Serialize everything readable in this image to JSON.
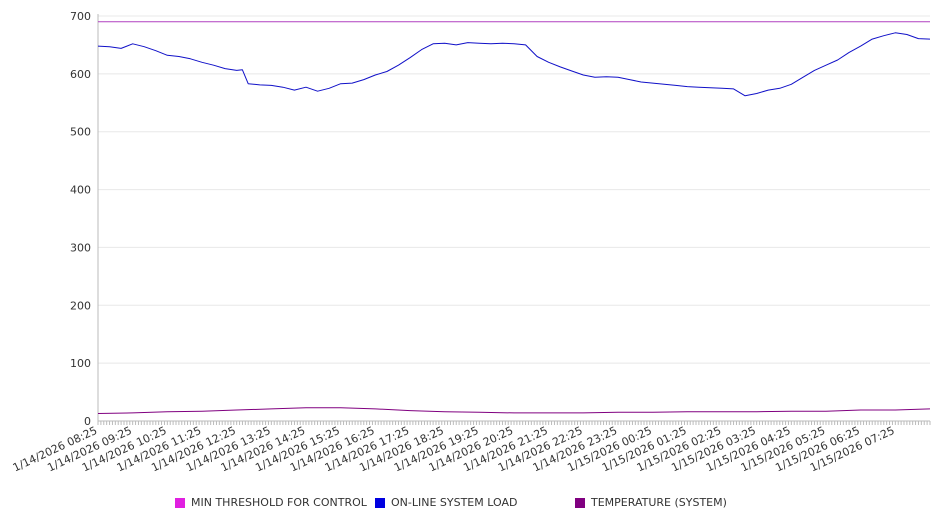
{
  "chart_data": {
    "type": "line",
    "y_ticks": [
      0,
      100,
      200,
      300,
      400,
      500,
      600,
      700
    ],
    "ylim": [
      0,
      700
    ],
    "x_tick_labels": [
      "1/14/2026 08:25",
      "1/14/2026 09:25",
      "1/14/2026 10:25",
      "1/14/2026 11:25",
      "1/14/2026 12:25",
      "1/14/2026 13:25",
      "1/14/2026 14:25",
      "1/14/2026 15:25",
      "1/14/2026 16:25",
      "1/14/2026 17:25",
      "1/14/2026 18:25",
      "1/14/2026 19:25",
      "1/14/2026 20:25",
      "1/14/2026 21:25",
      "1/14/2026 22:25",
      "1/14/2026 23:25",
      "1/15/2026 00:25",
      "1/15/2026 01:25",
      "1/15/2026 02:25",
      "1/15/2026 03:25",
      "1/15/2026 04:25",
      "1/15/2026 05:25",
      "1/15/2026 06:25",
      "1/15/2026 07:25"
    ],
    "x_range": [
      "1/14/2026 08:25",
      "1/15/2026 08:25"
    ],
    "grid": true,
    "legend_position": "bottom",
    "series": [
      {
        "name": "MIN THRESHOLD FOR CONTROL",
        "color": "#e020e0",
        "line_color": "#b040c0",
        "points": [
          [
            "1/14/2026 08:25",
            690
          ],
          [
            "1/15/2026 08:25",
            690
          ]
        ]
      },
      {
        "name": "ON-LINE SYSTEM LOAD",
        "color": "#0000e0",
        "line_color": "#1010c8",
        "points": [
          [
            "1/14/2026 08:25",
            648
          ],
          [
            "1/14/2026 08:45",
            647
          ],
          [
            "1/14/2026 09:05",
            644
          ],
          [
            "1/14/2026 09:25",
            652
          ],
          [
            "1/14/2026 09:45",
            647
          ],
          [
            "1/14/2026 10:05",
            640
          ],
          [
            "1/14/2026 10:25",
            632
          ],
          [
            "1/14/2026 10:45",
            630
          ],
          [
            "1/14/2026 11:05",
            626
          ],
          [
            "1/14/2026 11:25",
            620
          ],
          [
            "1/14/2026 11:45",
            615
          ],
          [
            "1/14/2026 12:05",
            609
          ],
          [
            "1/14/2026 12:25",
            606
          ],
          [
            "1/14/2026 12:35",
            607
          ],
          [
            "1/14/2026 12:45",
            583
          ],
          [
            "1/14/2026 13:05",
            581
          ],
          [
            "1/14/2026 13:25",
            580
          ],
          [
            "1/14/2026 13:45",
            577
          ],
          [
            "1/14/2026 14:05",
            572
          ],
          [
            "1/14/2026 14:25",
            577
          ],
          [
            "1/14/2026 14:45",
            570
          ],
          [
            "1/14/2026 15:05",
            575
          ],
          [
            "1/14/2026 15:25",
            583
          ],
          [
            "1/14/2026 15:45",
            584
          ],
          [
            "1/14/2026 16:05",
            590
          ],
          [
            "1/14/2026 16:25",
            598
          ],
          [
            "1/14/2026 16:45",
            604
          ],
          [
            "1/14/2026 17:05",
            615
          ],
          [
            "1/14/2026 17:25",
            628
          ],
          [
            "1/14/2026 17:45",
            642
          ],
          [
            "1/14/2026 18:05",
            652
          ],
          [
            "1/14/2026 18:25",
            653
          ],
          [
            "1/14/2026 18:45",
            650
          ],
          [
            "1/14/2026 19:05",
            654
          ],
          [
            "1/14/2026 19:25",
            653
          ],
          [
            "1/14/2026 19:45",
            652
          ],
          [
            "1/14/2026 20:05",
            653
          ],
          [
            "1/14/2026 20:25",
            652
          ],
          [
            "1/14/2026 20:45",
            650
          ],
          [
            "1/14/2026 21:05",
            630
          ],
          [
            "1/14/2026 21:25",
            620
          ],
          [
            "1/14/2026 21:45",
            612
          ],
          [
            "1/14/2026 22:05",
            605
          ],
          [
            "1/14/2026 22:25",
            598
          ],
          [
            "1/14/2026 22:45",
            594
          ],
          [
            "1/14/2026 23:05",
            595
          ],
          [
            "1/14/2026 23:25",
            594
          ],
          [
            "1/14/2026 23:45",
            590
          ],
          [
            "1/15/2026 00:05",
            586
          ],
          [
            "1/15/2026 00:25",
            584
          ],
          [
            "1/15/2026 00:45",
            582
          ],
          [
            "1/15/2026 01:05",
            580
          ],
          [
            "1/15/2026 01:25",
            578
          ],
          [
            "1/15/2026 01:45",
            577
          ],
          [
            "1/15/2026 02:05",
            576
          ],
          [
            "1/15/2026 02:25",
            575
          ],
          [
            "1/15/2026 02:45",
            574
          ],
          [
            "1/15/2026 03:05",
            562
          ],
          [
            "1/15/2026 03:25",
            566
          ],
          [
            "1/15/2026 03:45",
            572
          ],
          [
            "1/15/2026 04:05",
            575
          ],
          [
            "1/15/2026 04:25",
            582
          ],
          [
            "1/15/2026 04:45",
            594
          ],
          [
            "1/15/2026 05:05",
            606
          ],
          [
            "1/15/2026 05:25",
            615
          ],
          [
            "1/15/2026 05:45",
            624
          ],
          [
            "1/15/2026 06:05",
            637
          ],
          [
            "1/15/2026 06:25",
            648
          ],
          [
            "1/15/2026 06:45",
            660
          ],
          [
            "1/15/2026 07:05",
            666
          ],
          [
            "1/15/2026 07:25",
            671
          ],
          [
            "1/15/2026 07:45",
            668
          ],
          [
            "1/15/2026 08:05",
            661
          ],
          [
            "1/15/2026 08:25",
            660
          ]
        ]
      },
      {
        "name": "TEMPERATURE (SYSTEM)",
        "color": "#800080",
        "line_color": "#800080",
        "points": [
          [
            "1/14/2026 08:25",
            13
          ],
          [
            "1/14/2026 09:25",
            14
          ],
          [
            "1/14/2026 10:25",
            16
          ],
          [
            "1/14/2026 11:25",
            17
          ],
          [
            "1/14/2026 12:25",
            19
          ],
          [
            "1/14/2026 13:25",
            21
          ],
          [
            "1/14/2026 14:25",
            23
          ],
          [
            "1/14/2026 15:25",
            23
          ],
          [
            "1/14/2026 16:25",
            21
          ],
          [
            "1/14/2026 17:25",
            18
          ],
          [
            "1/14/2026 18:25",
            16
          ],
          [
            "1/14/2026 19:25",
            15
          ],
          [
            "1/14/2026 20:25",
            14
          ],
          [
            "1/14/2026 21:25",
            14
          ],
          [
            "1/14/2026 22:25",
            14
          ],
          [
            "1/14/2026 23:25",
            15
          ],
          [
            "1/15/2026 00:25",
            15
          ],
          [
            "1/15/2026 01:25",
            16
          ],
          [
            "1/15/2026 02:25",
            16
          ],
          [
            "1/15/2026 03:25",
            16
          ],
          [
            "1/15/2026 04:25",
            17
          ],
          [
            "1/15/2026 05:25",
            17
          ],
          [
            "1/15/2026 06:25",
            19
          ],
          [
            "1/15/2026 07:25",
            19
          ],
          [
            "1/15/2026 08:25",
            21
          ]
        ]
      }
    ]
  }
}
